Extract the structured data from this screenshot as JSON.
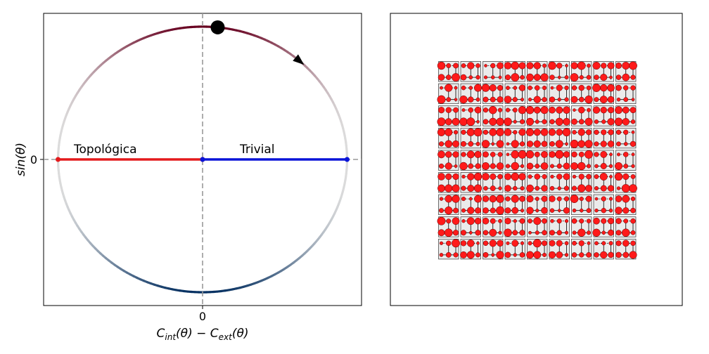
{
  "chart_data": [
    {
      "type": "line",
      "xlabel_parts": [
        "C",
        "int",
        "(θ) − C",
        "ext",
        "(θ)"
      ],
      "ylabel": "sin(θ)",
      "x_tick_label": "0",
      "y_tick_label": "0",
      "grid": false,
      "reference_lines": [
        "x = 0 (dashed)",
        "y = 0 (dashed)"
      ],
      "circle": {
        "center": [
          0,
          0
        ],
        "radius": 1,
        "colormap": "red-white-blue by sin(θ)"
      },
      "series": [
        {
          "name": "Topológica",
          "x": [
            -1,
            0
          ],
          "y": [
            0,
            0
          ],
          "color": "#e41a1c"
        },
        {
          "name": "Trivial",
          "x": [
            0,
            1
          ],
          "y": [
            0,
            0
          ],
          "color": "#0a14d8"
        }
      ],
      "marker": {
        "theta_deg": 84,
        "color": "#000000"
      },
      "arrow": {
        "theta_deg": 48,
        "color": "#000000"
      },
      "xlim": [
        -1.1,
        1.1
      ],
      "ylim": [
        -1.1,
        1.1
      ]
    },
    {
      "type": "grid-of-lattices",
      "rows": 9,
      "cols": 9,
      "cell_dot_color": "#ff1a1a",
      "cell_background": "#ebebeb",
      "link_color": "#000000"
    }
  ]
}
